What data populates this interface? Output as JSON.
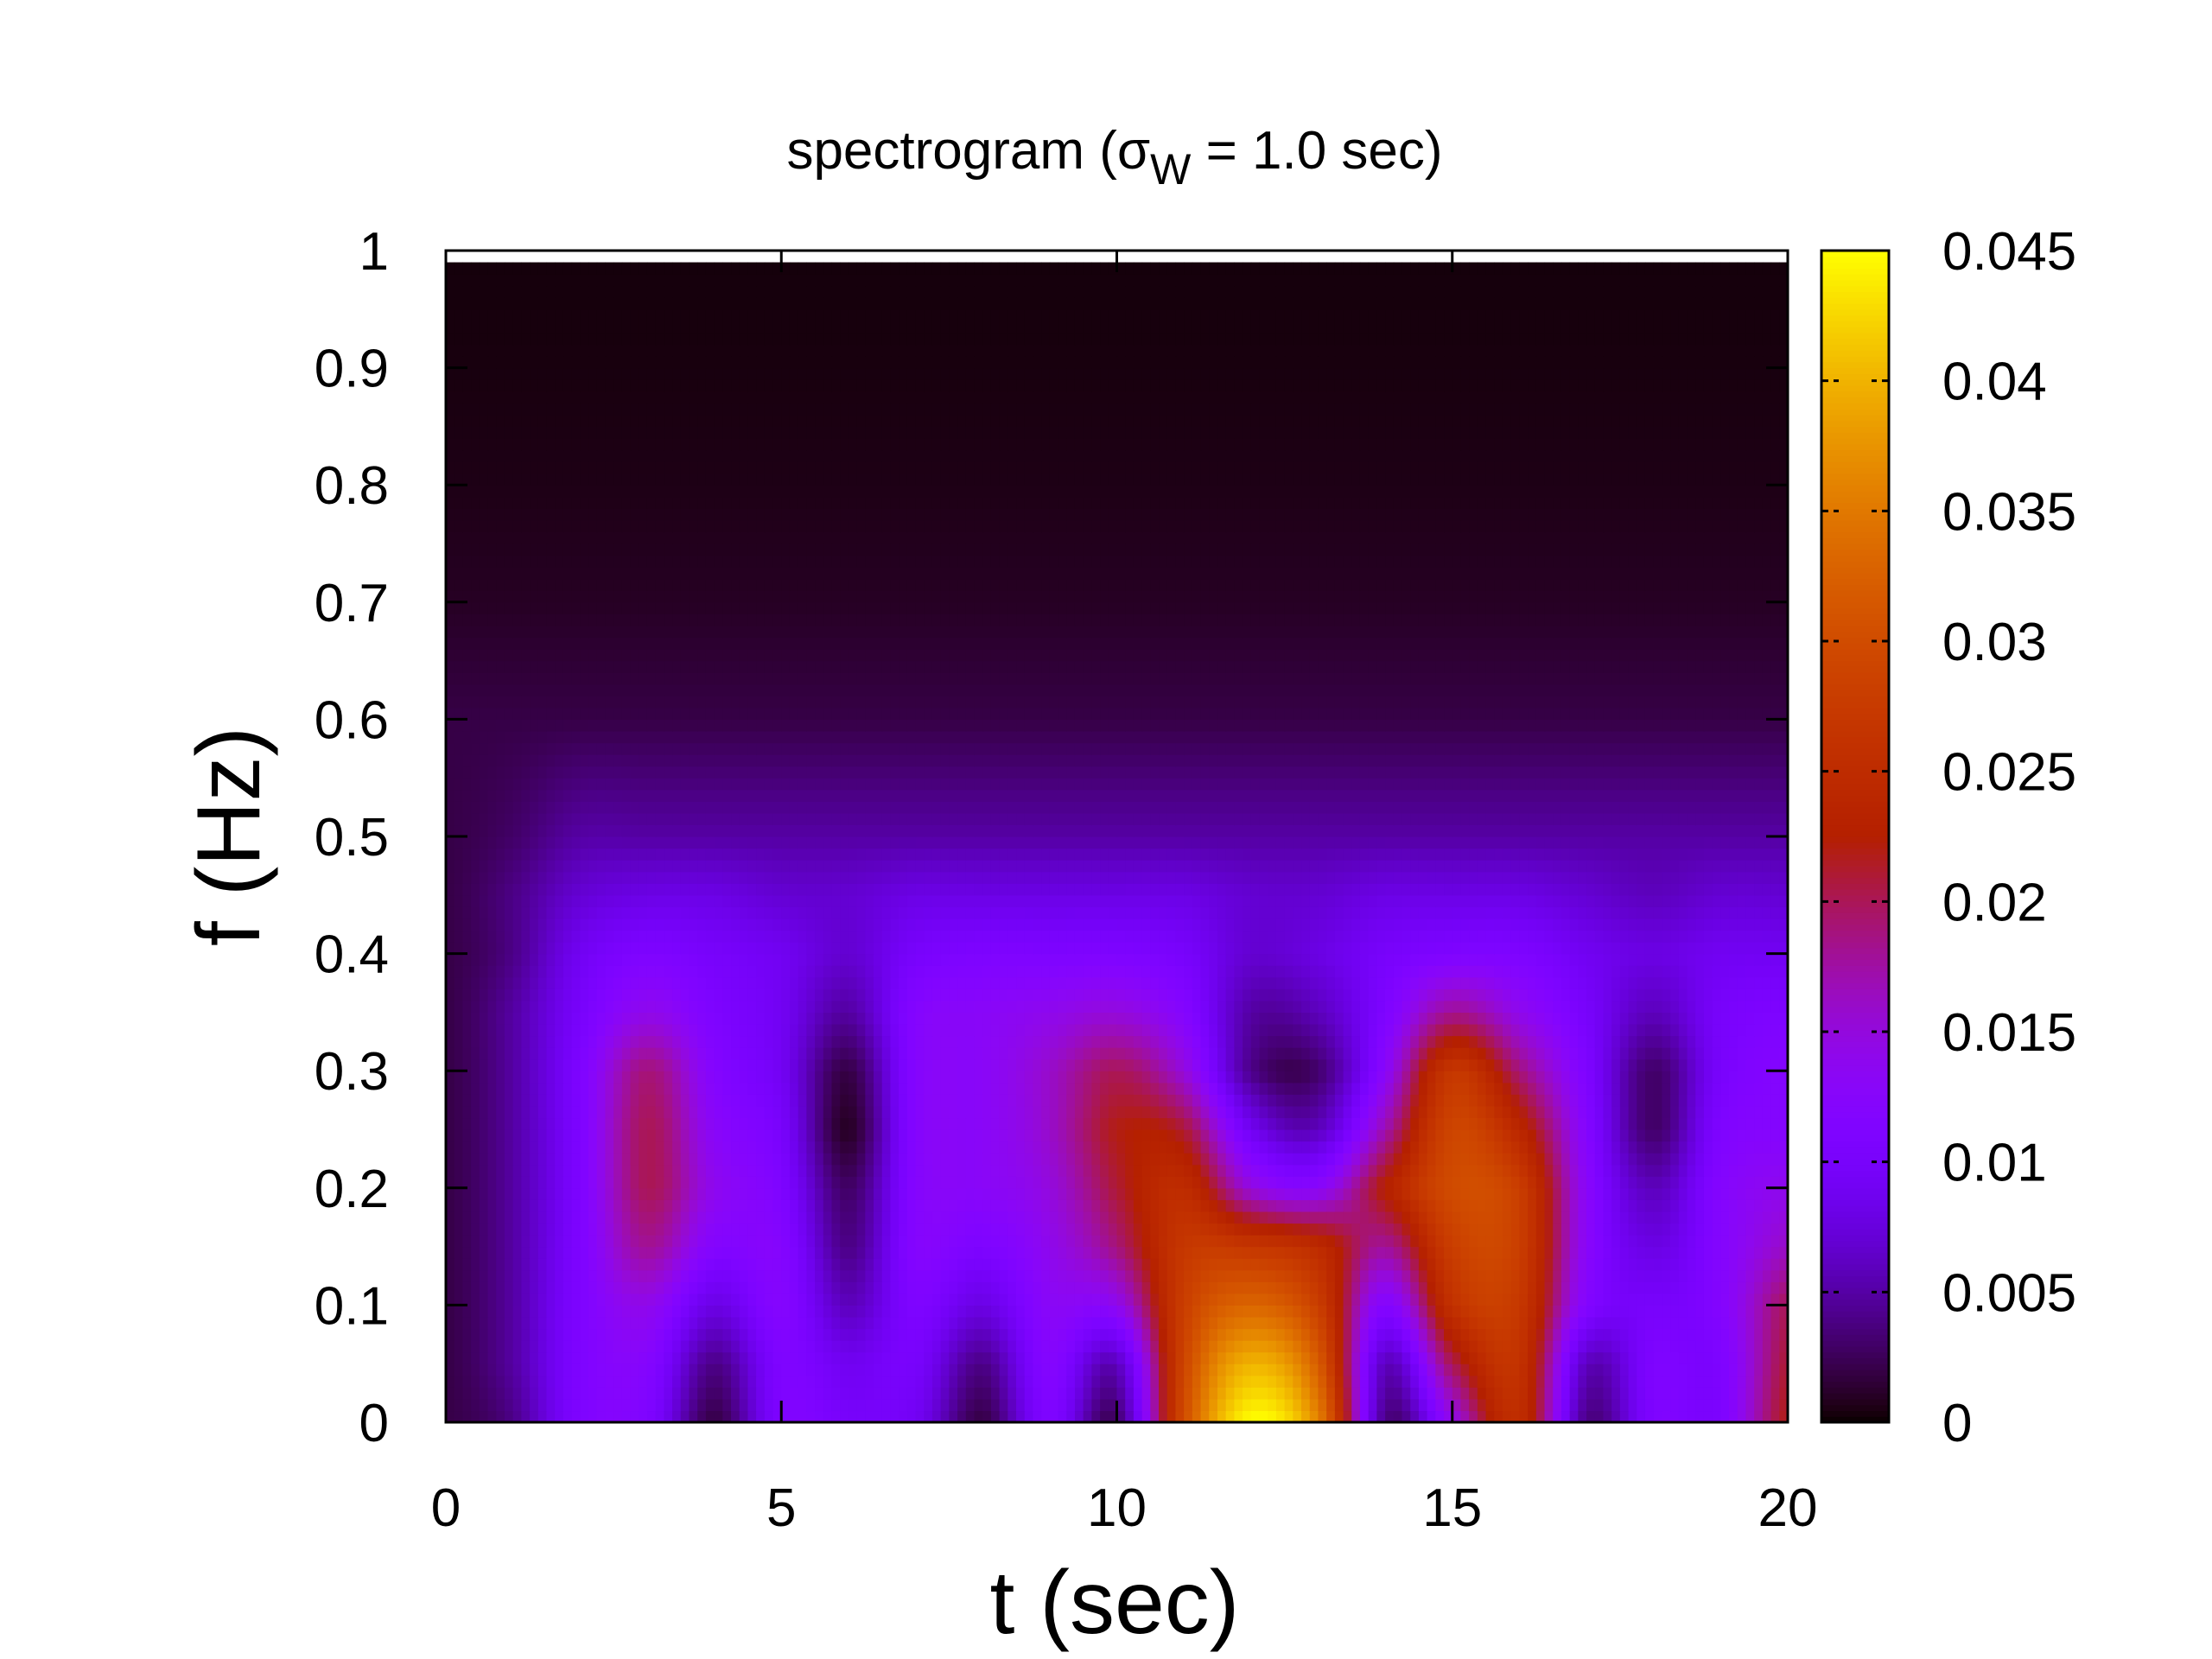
{
  "chart_data": {
    "type": "heatmap",
    "title": {
      "prefix": "spectrogram (σ",
      "subscript": "W",
      "suffix": " = 1.0 sec)"
    },
    "xlabel": "t (sec)",
    "ylabel": "f (Hz)",
    "xlim": [
      0,
      20
    ],
    "ylim": [
      0,
      1
    ],
    "xticks": [
      "0",
      "5",
      "10",
      "15",
      "20"
    ],
    "yticks": [
      "0",
      "0.1",
      "0.2",
      "0.3",
      "0.4",
      "0.5",
      "0.6",
      "0.7",
      "0.8",
      "0.9",
      "1"
    ],
    "colorbar": {
      "range": [
        0,
        0.045
      ],
      "ticks": [
        "0",
        "0.005",
        "0.01",
        "0.015",
        "0.02",
        "0.025",
        "0.03",
        "0.035",
        "0.04",
        "0.045"
      ],
      "palette": "black-purple-red-orange-yellow (gnuplot rgbformulae 7,5,15)"
    },
    "grid": false,
    "t": [
      0,
      1,
      2,
      3,
      4,
      5,
      6,
      7,
      8,
      9,
      10,
      11,
      12,
      13,
      14,
      15,
      16,
      17,
      18,
      19,
      20
    ],
    "f": [
      0,
      0.05,
      0.1,
      0.15,
      0.2,
      0.25,
      0.3,
      0.35,
      0.4,
      0.45,
      0.5,
      0.6,
      0.7,
      0.8,
      0.9,
      1.0
    ],
    "z": [
      [
        0.002,
        0.004,
        0.011,
        0.011,
        0.002,
        0.011,
        0.01,
        0.009,
        0.002,
        0.011,
        0.003,
        0.03,
        0.045,
        0.036,
        0.004,
        0.014,
        0.025,
        0.004,
        0.011,
        0.011,
        0.022
      ],
      [
        0.002,
        0.005,
        0.011,
        0.012,
        0.004,
        0.011,
        0.009,
        0.01,
        0.004,
        0.012,
        0.006,
        0.029,
        0.04,
        0.032,
        0.006,
        0.02,
        0.026,
        0.006,
        0.011,
        0.011,
        0.021
      ],
      [
        0.002,
        0.005,
        0.011,
        0.014,
        0.008,
        0.012,
        0.006,
        0.011,
        0.008,
        0.013,
        0.014,
        0.028,
        0.033,
        0.028,
        0.012,
        0.026,
        0.027,
        0.012,
        0.01,
        0.012,
        0.02
      ],
      [
        0.002,
        0.005,
        0.011,
        0.018,
        0.012,
        0.012,
        0.004,
        0.012,
        0.011,
        0.014,
        0.019,
        0.027,
        0.027,
        0.025,
        0.018,
        0.028,
        0.028,
        0.013,
        0.008,
        0.012,
        0.016
      ],
      [
        0.002,
        0.005,
        0.011,
        0.02,
        0.014,
        0.011,
        0.003,
        0.012,
        0.013,
        0.015,
        0.021,
        0.025,
        0.015,
        0.013,
        0.023,
        0.03,
        0.028,
        0.013,
        0.006,
        0.012,
        0.014
      ],
      [
        0.002,
        0.005,
        0.011,
        0.02,
        0.013,
        0.01,
        0.001,
        0.012,
        0.013,
        0.016,
        0.022,
        0.021,
        0.009,
        0.006,
        0.017,
        0.029,
        0.024,
        0.012,
        0.003,
        0.011,
        0.012
      ],
      [
        0.002,
        0.005,
        0.011,
        0.019,
        0.012,
        0.009,
        0.002,
        0.012,
        0.013,
        0.016,
        0.02,
        0.015,
        0.004,
        0.003,
        0.013,
        0.027,
        0.019,
        0.011,
        0.003,
        0.01,
        0.012
      ],
      [
        0.002,
        0.005,
        0.01,
        0.014,
        0.011,
        0.009,
        0.005,
        0.012,
        0.013,
        0.014,
        0.015,
        0.012,
        0.005,
        0.006,
        0.011,
        0.018,
        0.014,
        0.01,
        0.006,
        0.01,
        0.011
      ],
      [
        0.002,
        0.004,
        0.009,
        0.011,
        0.01,
        0.009,
        0.007,
        0.01,
        0.011,
        0.011,
        0.011,
        0.01,
        0.007,
        0.008,
        0.01,
        0.011,
        0.011,
        0.009,
        0.008,
        0.009,
        0.009
      ],
      [
        0.002,
        0.004,
        0.007,
        0.008,
        0.008,
        0.007,
        0.007,
        0.008,
        0.008,
        0.008,
        0.008,
        0.008,
        0.007,
        0.007,
        0.008,
        0.008,
        0.008,
        0.007,
        0.006,
        0.007,
        0.007
      ],
      [
        0.002,
        0.003,
        0.005,
        0.005,
        0.005,
        0.005,
        0.005,
        0.005,
        0.005,
        0.005,
        0.005,
        0.005,
        0.005,
        0.005,
        0.005,
        0.005,
        0.005,
        0.005,
        0.005,
        0.005,
        0.005
      ],
      [
        0.002,
        0.002,
        0.002,
        0.002,
        0.002,
        0.002,
        0.002,
        0.002,
        0.002,
        0.002,
        0.002,
        0.002,
        0.002,
        0.002,
        0.002,
        0.002,
        0.002,
        0.002,
        0.002,
        0.002,
        0.002
      ],
      [
        0.001,
        0.001,
        0.001,
        0.001,
        0.001,
        0.001,
        0.001,
        0.001,
        0.001,
        0.001,
        0.001,
        0.001,
        0.001,
        0.001,
        0.001,
        0.001,
        0.001,
        0.001,
        0.001,
        0.001,
        0.001
      ],
      [
        0.0006,
        0.0006,
        0.0006,
        0.0006,
        0.0006,
        0.0006,
        0.0006,
        0.0006,
        0.0006,
        0.0006,
        0.0006,
        0.0006,
        0.0006,
        0.0006,
        0.0006,
        0.0006,
        0.0006,
        0.0006,
        0.0006,
        0.0006,
        0.0006
      ],
      [
        0.0004,
        0.0004,
        0.0004,
        0.0004,
        0.0004,
        0.0004,
        0.0004,
        0.0004,
        0.0004,
        0.0004,
        0.0004,
        0.0004,
        0.0004,
        0.0004,
        0.0004,
        0.0004,
        0.0004,
        0.0004,
        0.0004,
        0.0004,
        0.0004
      ],
      [
        0.0003,
        0.0003,
        0.0003,
        0.0003,
        0.0003,
        0.0003,
        0.0003,
        0.0003,
        0.0003,
        0.0003,
        0.0003,
        0.0003,
        0.0003,
        0.0003,
        0.0003,
        0.0003,
        0.0003,
        0.0003,
        0.0003,
        0.0003,
        0.0003
      ]
    ]
  }
}
